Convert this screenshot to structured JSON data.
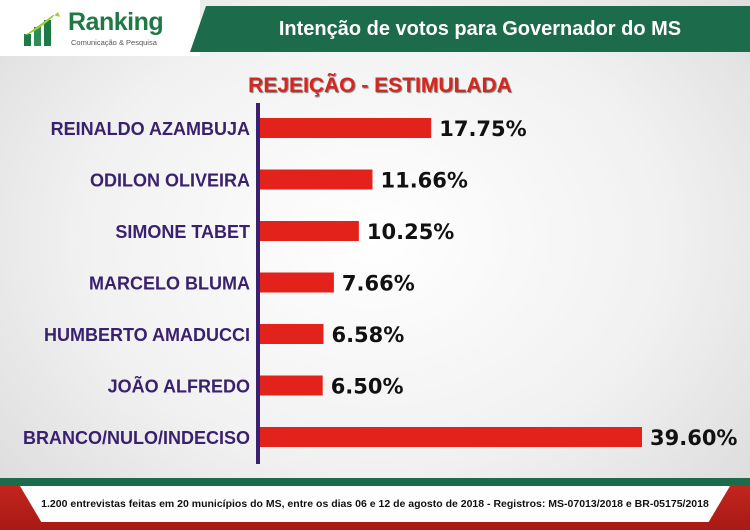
{
  "logo": {
    "name": "Ranking",
    "tagline": "Comunicação & Pesquisa"
  },
  "header": {
    "title": "Intenção de votos para Governador do MS"
  },
  "subtitle": "REJEIÇÃO - ESTIMULADA",
  "colors": {
    "bar": "#e3231b",
    "axis": "#3a2170",
    "header_bg": "#1c6b4b",
    "footer_bg": "#c8261f"
  },
  "chart_data": {
    "type": "bar",
    "orientation": "horizontal",
    "categories": [
      "REINALDO AZAMBUJA",
      "ODILON OLIVEIRA",
      "SIMONE TABET",
      "MARCELO BLUMA",
      "HUMBERTO AMADUCCI",
      "JOÃO ALFREDO",
      "BRANCO/NULO/INDECISO"
    ],
    "values": [
      17.75,
      11.66,
      10.25,
      7.66,
      6.58,
      6.5,
      39.6
    ],
    "value_labels": [
      "17.75%",
      "11.66%",
      "10.25%",
      "7.66%",
      "6.58%",
      "6.50%",
      "39.60%"
    ],
    "unit": "%",
    "xlim": [
      0,
      39.6
    ],
    "grid": false,
    "legend": "none"
  },
  "footer": {
    "note": "1.200 entrevistas feitas em 20 municípios do MS, entre os dias 06 e 12 de agosto de 2018 - Registros: MS-07013/2018 e BR-05175/2018"
  }
}
